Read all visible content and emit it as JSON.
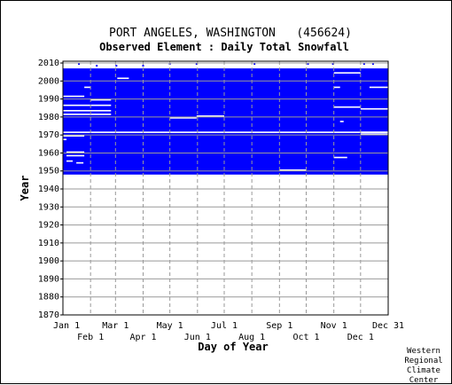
{
  "chart_data": {
    "type": "heatmap",
    "title": "PORT ANGELES, WASHINGTON   (456624)",
    "subtitle": "Observed Element : Daily Total Snowfall",
    "xlabel": "Day of Year",
    "ylabel": "Year",
    "x_ticks_top_row": [
      "Jan 1",
      "Mar 1",
      "May 1",
      "Jul 1",
      "Sep 1",
      "Nov 1",
      "Dec 31"
    ],
    "x_ticks_bottom_row": [
      "Feb 1",
      "Apr 1",
      "Jun 1",
      "Aug 1",
      "Oct 1",
      "Dec 1"
    ],
    "y_ticks": [
      "1870",
      "1880",
      "1890",
      "1900",
      "1910",
      "1920",
      "1930",
      "1940",
      "1950",
      "1960",
      "1970",
      "1980",
      "1990",
      "2000",
      "2010"
    ],
    "xlim": [
      1,
      366
    ],
    "ylim": [
      1870,
      2011
    ],
    "month_start_days": [
      1,
      32,
      60,
      91,
      121,
      152,
      182,
      213,
      244,
      274,
      305,
      335,
      366
    ],
    "data_colors": {
      "observed": "#0000ff",
      "missing": "#ffffff",
      "grid": "#999999"
    },
    "observed_blocks": [
      {
        "year_from": 1948,
        "year_to": 2006,
        "day_from": 1,
        "day_to": 366
      }
    ],
    "missing_segments": [
      {
        "year": 1996,
        "day_from": 25,
        "day_to": 32
      },
      {
        "year": 1991,
        "day_from": 1,
        "day_to": 25
      },
      {
        "year": 1989,
        "day_from": 32,
        "day_to": 55
      },
      {
        "year": 1986,
        "day_from": 1,
        "day_to": 55
      },
      {
        "year": 1983,
        "day_from": 1,
        "day_to": 55
      },
      {
        "year": 1981,
        "day_from": 1,
        "day_to": 55
      },
      {
        "year": 1980,
        "day_from": 151,
        "day_to": 182
      },
      {
        "year": 1979,
        "day_from": 121,
        "day_to": 151
      },
      {
        "year": 1971,
        "day_from": 1,
        "day_to": 366
      },
      {
        "year": 1969,
        "day_from": 1,
        "day_to": 25
      },
      {
        "year": 1967,
        "day_from": 1,
        "day_to": 5
      },
      {
        "year": 1960,
        "day_from": 5,
        "day_to": 25
      },
      {
        "year": 1958,
        "day_from": 5,
        "day_to": 25
      },
      {
        "year": 1955,
        "day_from": 5,
        "day_to": 12
      },
      {
        "year": 1954,
        "day_from": 16,
        "day_to": 24
      },
      {
        "year": 1996,
        "day_from": 305,
        "day_to": 312
      },
      {
        "year": 1985,
        "day_from": 305,
        "day_to": 335
      },
      {
        "year": 1984,
        "day_from": 335,
        "day_to": 366
      },
      {
        "year": 1977,
        "day_from": 312,
        "day_to": 316
      },
      {
        "year": 1971,
        "day_from": 335,
        "day_to": 366
      },
      {
        "year": 1970,
        "day_from": 335,
        "day_to": 366
      },
      {
        "year": 1957,
        "day_from": 305,
        "day_to": 320
      },
      {
        "year": 1950,
        "day_from": 244,
        "day_to": 274
      },
      {
        "year": 2004,
        "day_from": 305,
        "day_to": 335
      },
      {
        "year": 1996,
        "day_from": 345,
        "day_to": 366
      },
      {
        "year": 2001,
        "day_from": 62,
        "day_to": 75
      }
    ],
    "observed_marks": [
      {
        "year": 2009,
        "day": 18
      },
      {
        "year": 2008,
        "day": 38
      },
      {
        "year": 2008,
        "day": 60
      },
      {
        "year": 2008,
        "day": 90
      },
      {
        "year": 2009,
        "day": 120
      },
      {
        "year": 2009,
        "day": 150
      },
      {
        "year": 2009,
        "day": 215
      },
      {
        "year": 2009,
        "day": 275
      },
      {
        "year": 2009,
        "day": 303
      },
      {
        "year": 2009,
        "day": 338
      },
      {
        "year": 2009,
        "day": 348
      }
    ]
  },
  "credit": {
    "line1": "Western",
    "line2": "Regional",
    "line3": "Climate",
    "line4": "Center"
  }
}
